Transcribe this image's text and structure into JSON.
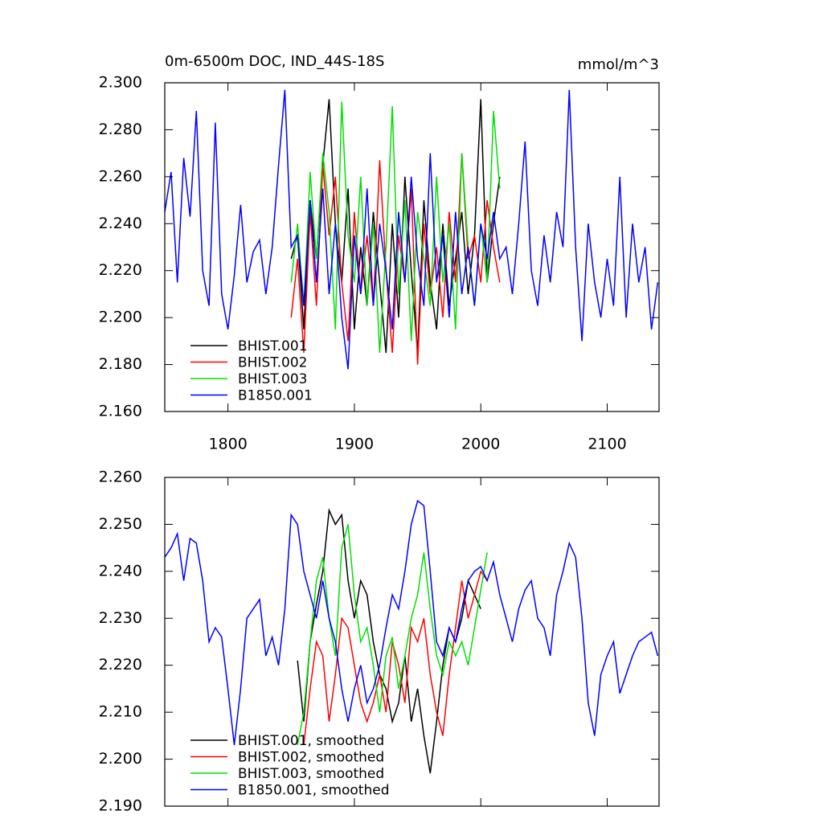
{
  "chart_data": [
    {
      "type": "line",
      "title": "0m-6500m DOC, IND_44S-18S",
      "units": "mmol/m^3",
      "x": [
        1750,
        1755,
        1760,
        1765,
        1770,
        1775,
        1780,
        1785,
        1790,
        1795,
        1800,
        1805,
        1810,
        1815,
        1820,
        1825,
        1830,
        1835,
        1840,
        1845,
        1850,
        1855,
        1860,
        1865,
        1870,
        1875,
        1880,
        1885,
        1890,
        1895,
        1900,
        1905,
        1910,
        1915,
        1920,
        1925,
        1930,
        1935,
        1940,
        1945,
        1950,
        1955,
        1960,
        1965,
        1970,
        1975,
        1980,
        1985,
        1990,
        1995,
        2000,
        2005,
        2010,
        2015,
        2020,
        2025,
        2030,
        2035,
        2040,
        2045,
        2050,
        2055,
        2060,
        2065,
        2070,
        2075,
        2080,
        2085,
        2090,
        2095,
        2100,
        2105,
        2110,
        2115,
        2120,
        2125,
        2130,
        2135,
        2140
      ],
      "series": [
        {
          "name": "BHIST.001",
          "color": "#000000",
          "values": [
            null,
            null,
            null,
            null,
            null,
            null,
            null,
            null,
            null,
            null,
            null,
            null,
            null,
            null,
            null,
            null,
            null,
            null,
            null,
            null,
            2.225,
            2.235,
            2.195,
            2.25,
            2.225,
            2.265,
            2.293,
            2.24,
            2.215,
            2.255,
            2.195,
            2.23,
            2.205,
            2.245,
            2.215,
            2.185,
            2.24,
            2.2,
            2.26,
            2.22,
            2.185,
            2.25,
            2.215,
            2.195,
            2.24,
            2.205,
            2.225,
            2.245,
            2.21,
            2.235,
            2.293,
            2.215,
            2.24,
            2.26,
            null,
            null,
            null,
            null,
            null,
            null,
            null,
            null,
            null,
            null,
            null,
            null,
            null,
            null,
            null,
            null,
            null,
            null,
            null,
            null,
            null,
            null,
            null,
            null,
            null
          ]
        },
        {
          "name": "BHIST.002",
          "color": "#ff0000",
          "values": [
            null,
            null,
            null,
            null,
            null,
            null,
            null,
            null,
            null,
            null,
            null,
            null,
            null,
            null,
            null,
            null,
            null,
            null,
            null,
            null,
            2.2,
            2.225,
            2.185,
            2.245,
            2.205,
            2.265,
            2.235,
            2.26,
            2.215,
            2.19,
            2.245,
            2.21,
            2.235,
            2.205,
            2.267,
            2.22,
            2.185,
            2.235,
            2.215,
            2.255,
            2.18,
            2.24,
            2.21,
            2.23,
            2.2,
            2.245,
            2.215,
            2.27,
            2.225,
            2.235,
            2.215,
            2.25,
            2.23,
            2.215,
            null,
            null,
            null,
            null,
            null,
            null,
            null,
            null,
            null,
            null,
            null,
            null,
            null,
            null,
            null,
            null,
            null,
            null,
            null,
            null,
            null,
            null,
            null,
            null,
            null
          ]
        },
        {
          "name": "BHIST.003",
          "color": "#00e000",
          "values": [
            null,
            null,
            null,
            null,
            null,
            null,
            null,
            null,
            null,
            null,
            null,
            null,
            null,
            null,
            null,
            null,
            null,
            null,
            null,
            null,
            2.215,
            2.24,
            2.205,
            2.262,
            2.225,
            2.27,
            2.245,
            2.195,
            2.292,
            2.235,
            2.215,
            2.26,
            2.205,
            2.24,
            2.185,
            2.23,
            2.29,
            2.21,
            2.25,
            2.19,
            2.245,
            2.225,
            2.205,
            2.26,
            2.215,
            2.24,
            2.195,
            2.27,
            2.23,
            2.205,
            2.24,
            2.215,
            2.288,
            2.255,
            null,
            null,
            null,
            null,
            null,
            null,
            null,
            null,
            null,
            null,
            null,
            null,
            null,
            null,
            null,
            null,
            null,
            null,
            null,
            null,
            null,
            null,
            null,
            null,
            null
          ]
        },
        {
          "name": "B1850.001",
          "color": "#0000ff",
          "values": [
            2.245,
            2.262,
            2.215,
            2.268,
            2.243,
            2.288,
            2.22,
            2.205,
            2.283,
            2.21,
            2.195,
            2.218,
            2.248,
            2.215,
            2.228,
            2.233,
            2.21,
            2.23,
            2.265,
            2.297,
            2.23,
            2.235,
            2.205,
            2.25,
            2.215,
            2.255,
            2.21,
            2.24,
            2.2,
            2.178,
            2.235,
            2.21,
            2.255,
            2.205,
            2.24,
            2.22,
            2.195,
            2.245,
            2.215,
            2.26,
            2.225,
            2.205,
            2.27,
            2.215,
            2.235,
            2.2,
            2.245,
            2.21,
            2.23,
            2.205,
            2.24,
            2.225,
            2.245,
            2.225,
            2.23,
            2.21,
            2.24,
            2.275,
            2.22,
            2.205,
            2.235,
            2.215,
            2.245,
            2.23,
            2.297,
            2.23,
            2.19,
            2.24,
            2.215,
            2.2,
            2.225,
            2.205,
            2.26,
            2.2,
            2.24,
            2.215,
            2.23,
            2.195,
            2.215
          ]
        }
      ],
      "xlim": [
        1750,
        2141
      ],
      "ylim": [
        2.16,
        2.3
      ],
      "xticks": [
        1800,
        1900,
        2000,
        2100
      ],
      "show_xtick_labels": true,
      "yticks": [
        {
          "value": 2.16,
          "label": "2.160"
        },
        {
          "value": 2.18,
          "label": "2.180"
        },
        {
          "value": 2.2,
          "label": "2.200"
        },
        {
          "value": 2.22,
          "label": "2.220"
        },
        {
          "value": 2.24,
          "label": "2.240"
        },
        {
          "value": 2.26,
          "label": "2.260"
        },
        {
          "value": 2.28,
          "label": "2.280"
        },
        {
          "value": 2.3,
          "label": "2.300"
        }
      ],
      "legend": "lower left"
    },
    {
      "type": "line",
      "x": [
        1750,
        1755,
        1760,
        1765,
        1770,
        1775,
        1780,
        1785,
        1790,
        1795,
        1800,
        1805,
        1810,
        1815,
        1820,
        1825,
        1830,
        1835,
        1840,
        1845,
        1850,
        1855,
        1860,
        1865,
        1870,
        1875,
        1880,
        1885,
        1890,
        1895,
        1900,
        1905,
        1910,
        1915,
        1920,
        1925,
        1930,
        1935,
        1940,
        1945,
        1950,
        1955,
        1960,
        1965,
        1970,
        1975,
        1980,
        1985,
        1990,
        1995,
        2000,
        2005,
        2010,
        2015,
        2020,
        2025,
        2030,
        2035,
        2040,
        2045,
        2050,
        2055,
        2060,
        2065,
        2070,
        2075,
        2080,
        2085,
        2090,
        2095,
        2100,
        2105,
        2110,
        2115,
        2120,
        2125,
        2130,
        2135,
        2140
      ],
      "series": [
        {
          "name": "BHIST.001, smoothed",
          "color": "#000000",
          "values": [
            null,
            null,
            null,
            null,
            null,
            null,
            null,
            null,
            null,
            null,
            null,
            null,
            null,
            null,
            null,
            null,
            null,
            null,
            null,
            null,
            null,
            2.221,
            2.208,
            2.225,
            2.233,
            2.24,
            2.253,
            2.25,
            2.252,
            2.238,
            2.23,
            2.238,
            2.235,
            2.225,
            2.218,
            2.215,
            2.208,
            2.212,
            2.222,
            2.208,
            2.215,
            2.205,
            2.197,
            2.208,
            2.22,
            2.228,
            2.225,
            2.23,
            2.238,
            2.235,
            2.232,
            null,
            null,
            null,
            null,
            null,
            null,
            null,
            null,
            null,
            null,
            null,
            null,
            null,
            null,
            null,
            null,
            null,
            null,
            null,
            null,
            null,
            null,
            null,
            null,
            null,
            null,
            null,
            null
          ]
        },
        {
          "name": "BHIST.002, smoothed",
          "color": "#ff0000",
          "values": [
            null,
            null,
            null,
            null,
            null,
            null,
            null,
            null,
            null,
            null,
            null,
            null,
            null,
            null,
            null,
            null,
            null,
            null,
            null,
            null,
            null,
            null,
            2.203,
            2.215,
            2.225,
            2.222,
            2.208,
            2.218,
            2.23,
            2.228,
            2.22,
            2.212,
            2.208,
            2.212,
            2.218,
            2.21,
            2.225,
            2.22,
            2.212,
            2.228,
            2.225,
            2.23,
            2.218,
            2.21,
            2.205,
            2.218,
            2.228,
            2.238,
            2.23,
            2.235,
            2.24,
            2.238,
            null,
            null,
            null,
            null,
            null,
            null,
            null,
            null,
            null,
            null,
            null,
            null,
            null,
            null,
            null,
            null,
            null,
            null,
            null,
            null,
            null,
            null,
            null,
            null,
            null,
            null,
            null
          ]
        },
        {
          "name": "BHIST.003, smoothed",
          "color": "#00e000",
          "values": [
            null,
            null,
            null,
            null,
            null,
            null,
            null,
            null,
            null,
            null,
            null,
            null,
            null,
            null,
            null,
            null,
            null,
            null,
            null,
            null,
            null,
            2.203,
            2.21,
            2.225,
            2.238,
            2.243,
            2.23,
            2.222,
            2.245,
            2.25,
            2.235,
            2.225,
            2.228,
            2.22,
            2.21,
            2.222,
            2.226,
            2.215,
            2.222,
            2.23,
            2.235,
            2.244,
            2.232,
            2.222,
            2.218,
            2.225,
            2.222,
            2.225,
            2.22,
            2.228,
            2.236,
            2.244,
            null,
            null,
            null,
            null,
            null,
            null,
            null,
            null,
            null,
            null,
            null,
            null,
            null,
            null,
            null,
            null,
            null,
            null,
            null,
            null,
            null,
            null,
            null,
            null,
            null,
            null,
            null
          ]
        },
        {
          "name": "B1850.001, smoothed",
          "color": "#0000ff",
          "values": [
            2.243,
            2.245,
            2.248,
            2.238,
            2.247,
            2.246,
            2.238,
            2.225,
            2.228,
            2.226,
            2.215,
            2.203,
            2.215,
            2.23,
            2.232,
            2.234,
            2.222,
            2.226,
            2.22,
            2.232,
            2.252,
            2.25,
            2.24,
            2.235,
            2.23,
            2.238,
            2.23,
            2.225,
            2.215,
            2.208,
            2.215,
            2.22,
            2.212,
            2.215,
            2.22,
            2.228,
            2.235,
            2.232,
            2.24,
            2.25,
            2.255,
            2.254,
            2.24,
            2.225,
            2.222,
            2.228,
            2.225,
            2.232,
            2.238,
            2.24,
            2.241,
            2.238,
            2.242,
            2.235,
            2.23,
            2.225,
            2.232,
            2.236,
            2.238,
            2.23,
            2.228,
            2.222,
            2.235,
            2.24,
            2.246,
            2.243,
            2.23,
            2.212,
            2.205,
            2.218,
            2.222,
            2.225,
            2.214,
            2.218,
            2.222,
            2.225,
            2.226,
            2.227,
            2.222
          ]
        }
      ],
      "xlim": [
        1750,
        2141
      ],
      "ylim": [
        2.19,
        2.26
      ],
      "xticks": [
        1800,
        1900,
        2000,
        2100
      ],
      "show_xtick_labels": false,
      "yticks": [
        {
          "value": 2.19,
          "label": "2.190"
        },
        {
          "value": 2.2,
          "label": "2.200"
        },
        {
          "value": 2.21,
          "label": "2.210"
        },
        {
          "value": 2.22,
          "label": "2.220"
        },
        {
          "value": 2.23,
          "label": "2.230"
        },
        {
          "value": 2.24,
          "label": "2.240"
        },
        {
          "value": 2.25,
          "label": "2.250"
        },
        {
          "value": 2.26,
          "label": "2.260"
        }
      ],
      "legend": "lower left"
    }
  ]
}
